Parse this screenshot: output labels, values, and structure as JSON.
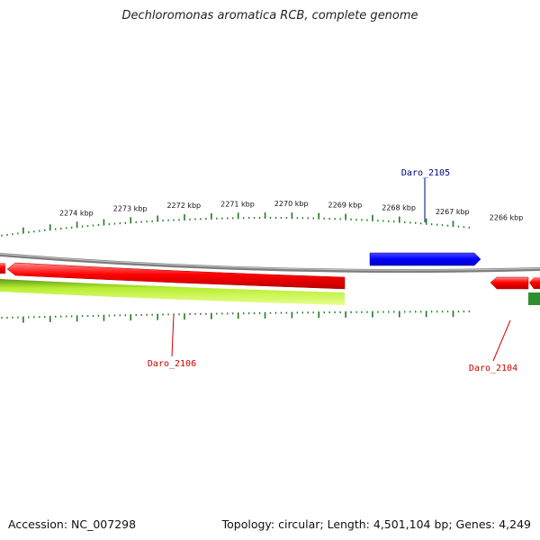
{
  "title": "Dechloromonas aromatica RCB, complete genome",
  "footer": {
    "accession": "Accession: NC_007298",
    "summary": "Topology: circular; Length: 4,501,104 bp; Genes: 4,249"
  },
  "colors": {
    "backbone": "#808080",
    "tick": "#1f7a1f",
    "forward_gene": "#0000ff",
    "reverse_gene": "#ff0000",
    "track_band": "#99dd22",
    "edge_gene": "#2a8a2a",
    "label_blue": "#00008b",
    "label_red": "#cc0000"
  },
  "scale": {
    "labels": [
      "2274 kbp",
      "2273 kbp",
      "2272 kbp",
      "2271 kbp",
      "2270 kbp",
      "2269 kbp",
      "2268 kbp",
      "2267 kbp",
      "2266 kbp"
    ],
    "positions_kbp": [
      2274,
      2273,
      2272,
      2271,
      2270,
      2269,
      2268,
      2267,
      2266
    ]
  },
  "genes": [
    {
      "name": "Daro_2105",
      "strand": "forward",
      "label_color": "#00008b"
    },
    {
      "name": "Daro_2106",
      "strand": "reverse",
      "label_color": "#cc0000"
    },
    {
      "name": "Daro_2104",
      "strand": "reverse",
      "label_color": "#cc0000"
    }
  ]
}
